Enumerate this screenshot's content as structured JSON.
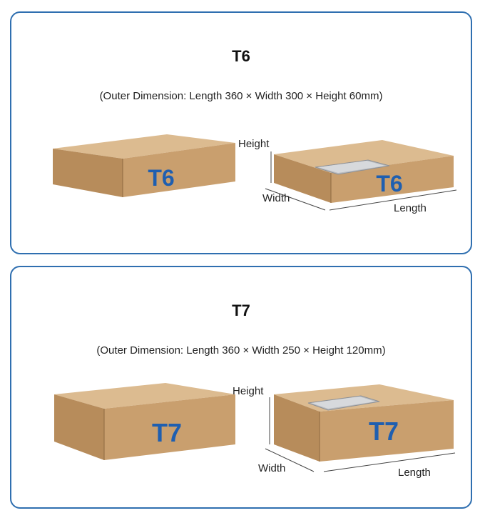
{
  "t6": {
    "title": "T6",
    "description": "(Outer Dimension: Length 360 × Width 300 × Height 60mm)",
    "box_label_left": "T6",
    "box_label_right": "T6",
    "dim_height": "Height",
    "dim_width": "Width",
    "dim_length": "Length"
  },
  "t7": {
    "title": "T7",
    "description": "(Outer Dimension: Length 360 × Width 250 × Height 120mm)",
    "box_label_left": "T7",
    "box_label_right": "T7",
    "dim_height": "Height",
    "dim_width": "Width",
    "dim_length": "Length"
  },
  "colors": {
    "border": "#2f6fb0",
    "cardboard_top": "#d8b68a",
    "cardboard_front": "#c9a06f",
    "cardboard_side": "#b88d5c",
    "label_blue": "#1f5fb0"
  }
}
